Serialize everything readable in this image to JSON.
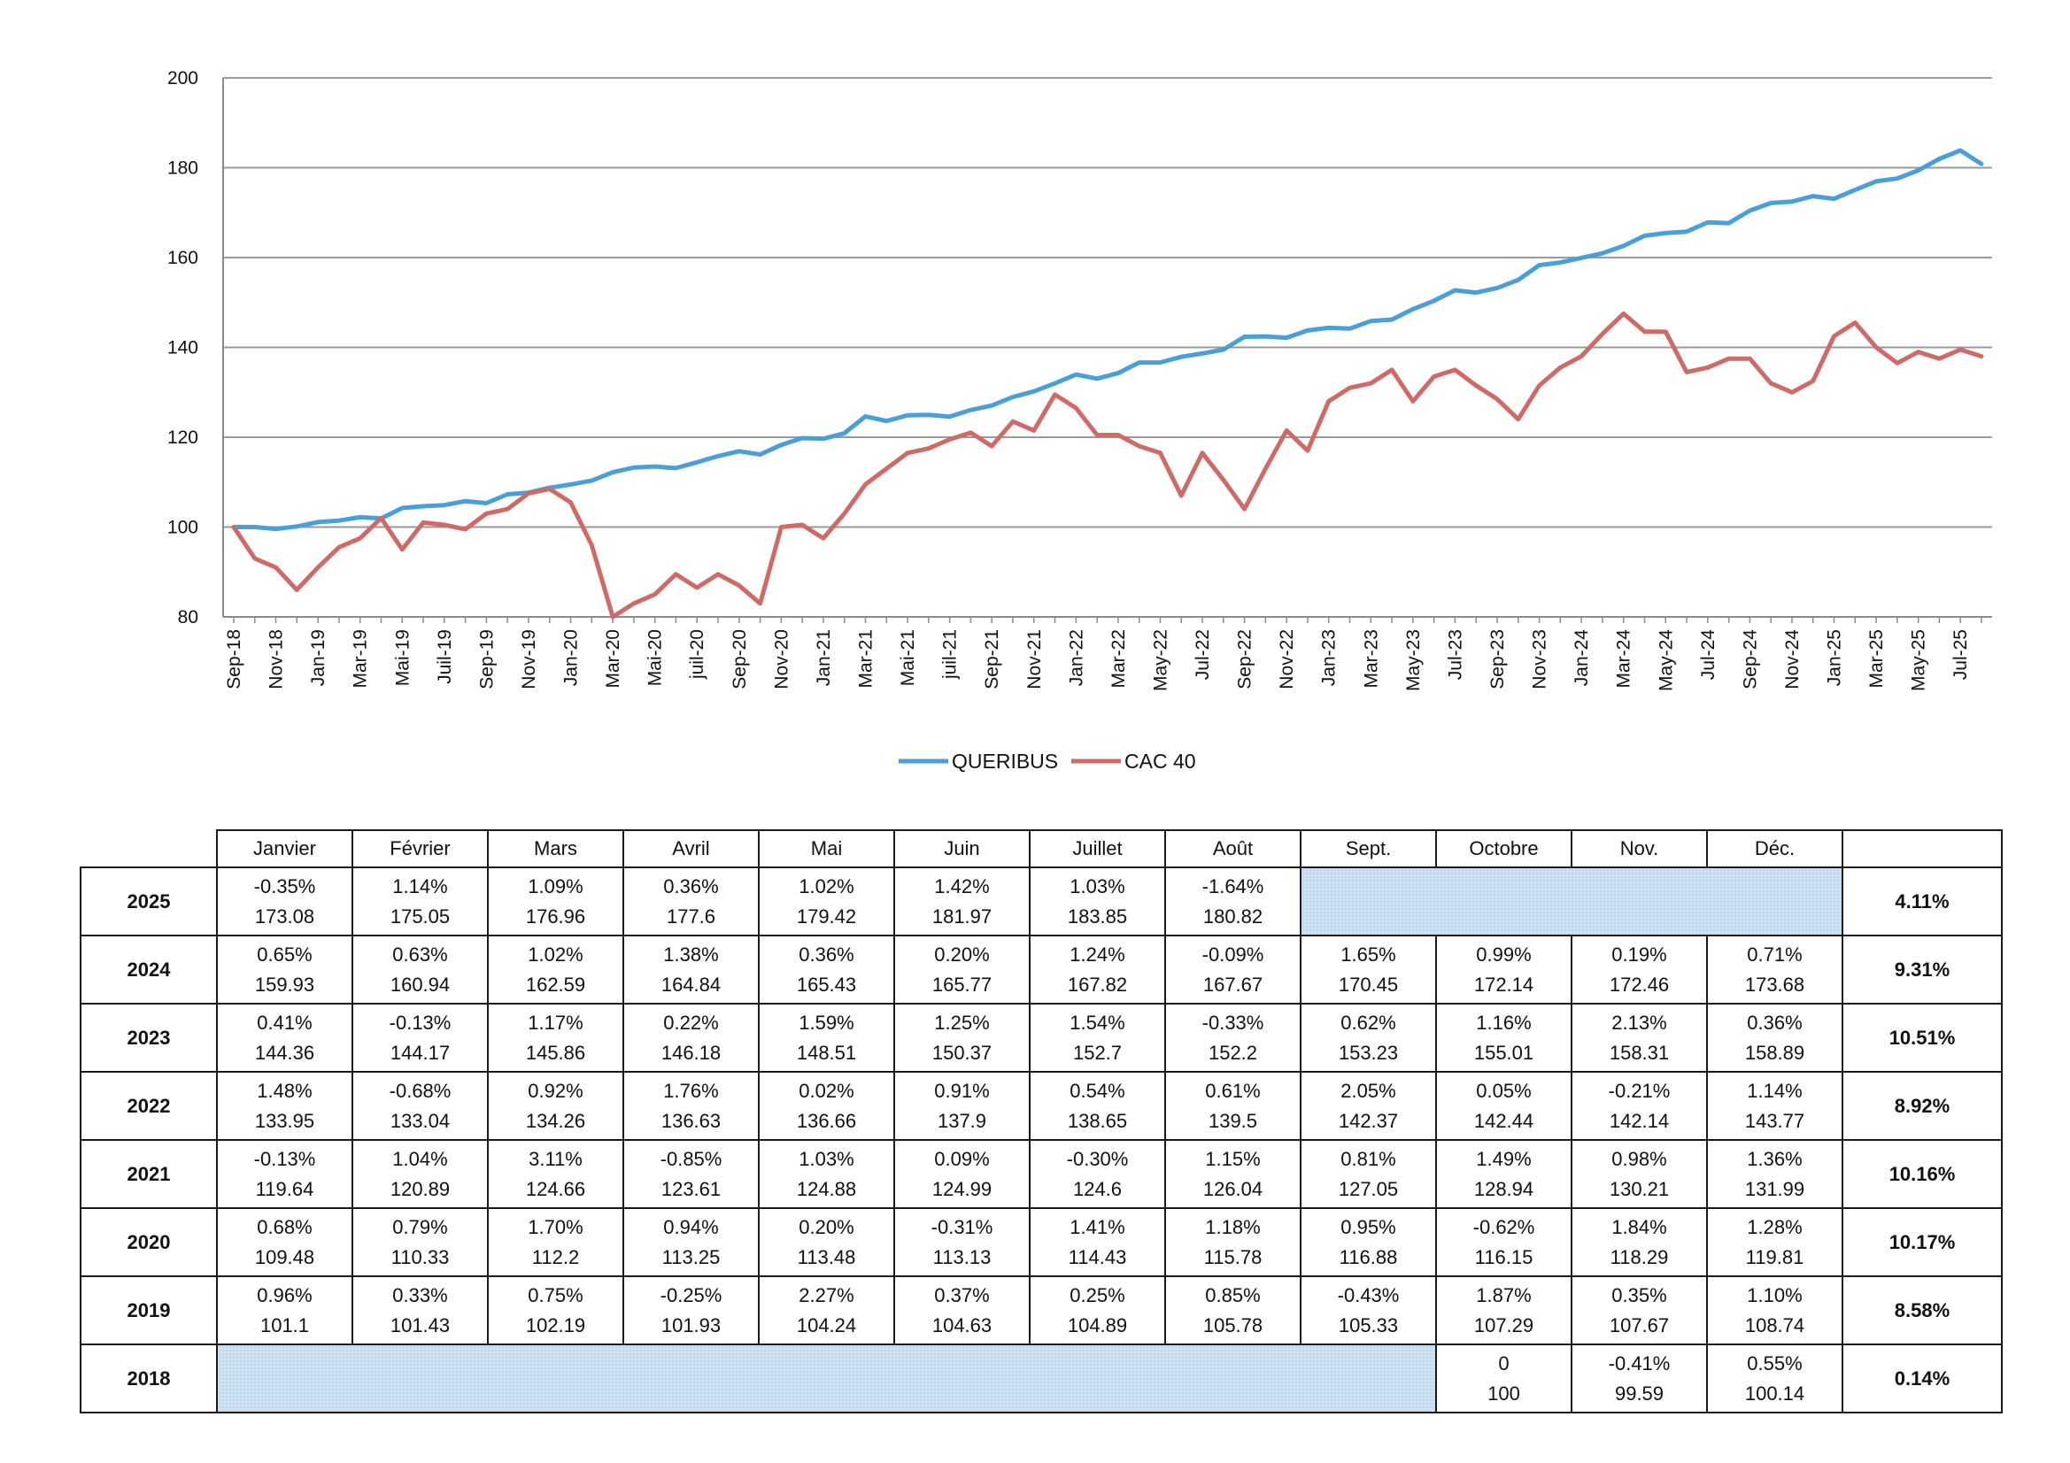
{
  "chart_data": {
    "type": "line",
    "ylim": [
      80,
      200
    ],
    "yticks": [
      80,
      100,
      120,
      140,
      160,
      180,
      200
    ],
    "grid": true,
    "legend_position": "bottom",
    "x_tick_labels": [
      "Sep-18",
      "Nov-18",
      "Jan-19",
      "Mar-19",
      "Mai-19",
      "Juil-19",
      "Sep-19",
      "Nov-19",
      "Jan-20",
      "Mar-20",
      "Mai-20",
      "juil-20",
      "Sep-20",
      "Nov-20",
      "Jan-21",
      "Mar-21",
      "Mai-21",
      "juil-21",
      "Sep-21",
      "Nov-21",
      "Jan-22",
      "Mar-22",
      "May-22",
      "Jul-22",
      "Sep-22",
      "Nov-22",
      "Jan-23",
      "Mar-23",
      "May-23",
      "Jul-23",
      "Sep-23",
      "Nov-23",
      "Jan-24",
      "Mar-24",
      "May-24",
      "Jul-24",
      "Sep-24",
      "Nov-24",
      "Jan-25",
      "Mar-25",
      "May-25",
      "Jul-25"
    ],
    "series": [
      {
        "name": "QUERIBUS",
        "color": "#4a9fd8",
        "values": [
          100.0,
          100.0,
          99.59,
          100.14,
          101.1,
          101.43,
          102.19,
          101.93,
          104.24,
          104.63,
          104.89,
          105.78,
          105.33,
          107.29,
          107.67,
          108.74,
          109.48,
          110.33,
          112.2,
          113.25,
          113.48,
          113.13,
          114.43,
          115.78,
          116.88,
          116.15,
          118.29,
          119.81,
          119.64,
          120.89,
          124.66,
          123.61,
          124.88,
          124.99,
          124.6,
          126.04,
          127.05,
          128.94,
          130.21,
          131.99,
          133.95,
          133.04,
          134.26,
          136.63,
          136.66,
          137.9,
          138.65,
          139.5,
          142.37,
          142.44,
          142.14,
          143.77,
          144.36,
          144.17,
          145.86,
          146.18,
          148.51,
          150.37,
          152.7,
          152.2,
          153.23,
          155.01,
          158.31,
          158.89,
          159.93,
          160.94,
          162.59,
          164.84,
          165.43,
          165.77,
          167.82,
          167.67,
          170.45,
          172.14,
          172.46,
          173.68,
          173.08,
          175.05,
          176.96,
          177.6,
          179.42,
          181.97,
          183.85,
          180.82
        ]
      },
      {
        "name": "CAC 40",
        "color": "#d06a66",
        "values": [
          100.0,
          93.0,
          91.0,
          86.0,
          91.0,
          95.5,
          97.5,
          102.0,
          95.0,
          101.0,
          100.5,
          99.5,
          103.0,
          104.0,
          107.5,
          108.5,
          105.5,
          96.0,
          80.0,
          83.0,
          85.0,
          89.5,
          86.5,
          89.5,
          87.0,
          83.0,
          100.0,
          100.5,
          97.5,
          103.0,
          109.5,
          113.0,
          116.5,
          117.5,
          119.5,
          121.0,
          118.0,
          123.5,
          121.5,
          129.5,
          126.5,
          120.5,
          120.5,
          118.0,
          116.5,
          107.0,
          116.5,
          110.5,
          104.0,
          113.0,
          121.5,
          117.0,
          128.0,
          131.0,
          132.0,
          135.0,
          128.0,
          133.5,
          135.0,
          131.5,
          128.5,
          124.0,
          131.5,
          135.5,
          138.0,
          143.0,
          147.5,
          143.5,
          143.5,
          134.5,
          135.5,
          137.5,
          137.5,
          132.0,
          130.0,
          132.5,
          142.5,
          145.5,
          140.0,
          136.5,
          139.0,
          137.5,
          139.5,
          138.0
        ]
      }
    ]
  },
  "legend": [
    {
      "label": "QUERIBUS",
      "color": "#4a9fd8"
    },
    {
      "label": "CAC 40",
      "color": "#d06a66"
    }
  ],
  "table": {
    "months": [
      "Janvier",
      "Février",
      "Mars",
      "Avril",
      "Mai",
      "Juin",
      "Juillet",
      "Août",
      "Sept.",
      "Octobre",
      "Nov.",
      "Déc."
    ],
    "rows": [
      {
        "year": "2025",
        "total": "4.11%",
        "cells": [
          [
            "-0.35%",
            "173.08"
          ],
          [
            "1.14%",
            "175.05"
          ],
          [
            "1.09%",
            "176.96"
          ],
          [
            "0.36%",
            "177.6"
          ],
          [
            "1.02%",
            "179.42"
          ],
          [
            "1.42%",
            "181.97"
          ],
          [
            "1.03%",
            "183.85"
          ],
          [
            "-1.64%",
            "180.82"
          ],
          null,
          null,
          null,
          null
        ]
      },
      {
        "year": "2024",
        "total": "9.31%",
        "cells": [
          [
            "0.65%",
            "159.93"
          ],
          [
            "0.63%",
            "160.94"
          ],
          [
            "1.02%",
            "162.59"
          ],
          [
            "1.38%",
            "164.84"
          ],
          [
            "0.36%",
            "165.43"
          ],
          [
            "0.20%",
            "165.77"
          ],
          [
            "1.24%",
            "167.82"
          ],
          [
            "-0.09%",
            "167.67"
          ],
          [
            "1.65%",
            "170.45"
          ],
          [
            "0.99%",
            "172.14"
          ],
          [
            "0.19%",
            "172.46"
          ],
          [
            "0.71%",
            "173.68"
          ]
        ]
      },
      {
        "year": "2023",
        "total": "10.51%",
        "cells": [
          [
            "0.41%",
            "144.36"
          ],
          [
            "-0.13%",
            "144.17"
          ],
          [
            "1.17%",
            "145.86"
          ],
          [
            "0.22%",
            "146.18"
          ],
          [
            "1.59%",
            "148.51"
          ],
          [
            "1.25%",
            "150.37"
          ],
          [
            "1.54%",
            "152.7"
          ],
          [
            "-0.33%",
            "152.2"
          ],
          [
            "0.62%",
            "153.23"
          ],
          [
            "1.16%",
            "155.01"
          ],
          [
            "2.13%",
            "158.31"
          ],
          [
            "0.36%",
            "158.89"
          ]
        ]
      },
      {
        "year": "2022",
        "total": "8.92%",
        "cells": [
          [
            "1.48%",
            "133.95"
          ],
          [
            "-0.68%",
            "133.04"
          ],
          [
            "0.92%",
            "134.26"
          ],
          [
            "1.76%",
            "136.63"
          ],
          [
            "0.02%",
            "136.66"
          ],
          [
            "0.91%",
            "137.9"
          ],
          [
            "0.54%",
            "138.65"
          ],
          [
            "0.61%",
            "139.5"
          ],
          [
            "2.05%",
            "142.37"
          ],
          [
            "0.05%",
            "142.44"
          ],
          [
            "-0.21%",
            "142.14"
          ],
          [
            "1.14%",
            "143.77"
          ]
        ]
      },
      {
        "year": "2021",
        "total": "10.16%",
        "cells": [
          [
            "-0.13%",
            "119.64"
          ],
          [
            "1.04%",
            "120.89"
          ],
          [
            "3.11%",
            "124.66"
          ],
          [
            "-0.85%",
            "123.61"
          ],
          [
            "1.03%",
            "124.88"
          ],
          [
            "0.09%",
            "124.99"
          ],
          [
            "-0.30%",
            "124.6"
          ],
          [
            "1.15%",
            "126.04"
          ],
          [
            "0.81%",
            "127.05"
          ],
          [
            "1.49%",
            "128.94"
          ],
          [
            "0.98%",
            "130.21"
          ],
          [
            "1.36%",
            "131.99"
          ]
        ]
      },
      {
        "year": "2020",
        "total": "10.17%",
        "cells": [
          [
            "0.68%",
            "109.48"
          ],
          [
            "0.79%",
            "110.33"
          ],
          [
            "1.70%",
            "112.2"
          ],
          [
            "0.94%",
            "113.25"
          ],
          [
            "0.20%",
            "113.48"
          ],
          [
            "-0.31%",
            "113.13"
          ],
          [
            "1.41%",
            "114.43"
          ],
          [
            "1.18%",
            "115.78"
          ],
          [
            "0.95%",
            "116.88"
          ],
          [
            "-0.62%",
            "116.15"
          ],
          [
            "1.84%",
            "118.29"
          ],
          [
            "1.28%",
            "119.81"
          ]
        ]
      },
      {
        "year": "2019",
        "total": "8.58%",
        "cells": [
          [
            "0.96%",
            "101.1"
          ],
          [
            "0.33%",
            "101.43"
          ],
          [
            "0.75%",
            "102.19"
          ],
          [
            "-0.25%",
            "101.93"
          ],
          [
            "2.27%",
            "104.24"
          ],
          [
            "0.37%",
            "104.63"
          ],
          [
            "0.25%",
            "104.89"
          ],
          [
            "0.85%",
            "105.78"
          ],
          [
            "-0.43%",
            "105.33"
          ],
          [
            "1.87%",
            "107.29"
          ],
          [
            "0.35%",
            "107.67"
          ],
          [
            "1.10%",
            "108.74"
          ]
        ]
      },
      {
        "year": "2018",
        "total": "0.14%",
        "cells": [
          null,
          null,
          null,
          null,
          null,
          null,
          null,
          null,
          null,
          [
            "0",
            "100"
          ],
          [
            "-0.41%",
            "99.59"
          ],
          [
            "0.55%",
            "100.14"
          ]
        ]
      }
    ]
  }
}
